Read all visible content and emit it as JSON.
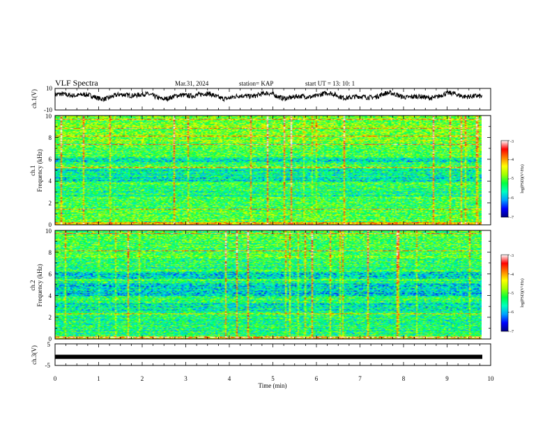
{
  "header": {
    "title": "VLF Spectra",
    "date": "Mar.31, 2024",
    "station": "station= KAP",
    "start": "start  UT =   13: 10: 1"
  },
  "chart_data": [
    {
      "type": "line",
      "panel": "ch1-waveform",
      "ylabel": "ch.1(V)",
      "ylim": [
        -10,
        10
      ],
      "yticks": [
        "10",
        "-10"
      ],
      "xlim": [
        0,
        10
      ],
      "data_extent_min": [
        0,
        9.8
      ],
      "y_envelope_V": [
        -2,
        8
      ]
    },
    {
      "type": "heatmap",
      "panel": "ch1-spectrogram",
      "ylabel": "ch.1\nFrequency (kHz)",
      "ylim": [
        0,
        10
      ],
      "yticks": [
        "0",
        "2",
        "4",
        "6",
        "8",
        "10"
      ],
      "xlim": [
        0,
        10
      ],
      "colorbar": {
        "label": "log(PSD)(V²/Hz)",
        "range": [
          -7,
          -3
        ],
        "ticks": [
          "-3",
          "-4",
          "-5",
          "-6",
          "-7"
        ],
        "colormap": [
          "#000080",
          "#0000ff",
          "#00a0ff",
          "#00ffc0",
          "#00ff40",
          "#a0ff00",
          "#ffff00",
          "#ff8000",
          "#ff0000",
          "#ffffff"
        ]
      }
    },
    {
      "type": "heatmap",
      "panel": "ch2-spectrogram",
      "ylabel": "ch.2\nFrequency (kHz)",
      "ylim": [
        0,
        10
      ],
      "yticks": [
        "0",
        "2",
        "4",
        "6",
        "8",
        "10"
      ],
      "xlim": [
        0,
        10
      ],
      "colorbar": {
        "label": "log(PSD)(V²/Hz)",
        "range": [
          -7,
          -3
        ],
        "ticks": [
          "-3",
          "-4",
          "-5",
          "-6",
          "-7"
        ]
      }
    },
    {
      "type": "line",
      "panel": "ch3-waveform",
      "ylabel": "ch.3(V)",
      "ylim": [
        -5,
        5
      ],
      "yticks": [
        "5",
        "-5"
      ],
      "xlim": [
        0,
        10
      ],
      "level_V": -1,
      "xlabel": "Time (min)",
      "xticks": [
        "0",
        "1",
        "2",
        "3",
        "4",
        "5",
        "6",
        "7",
        "8",
        "9",
        "10"
      ]
    }
  ]
}
